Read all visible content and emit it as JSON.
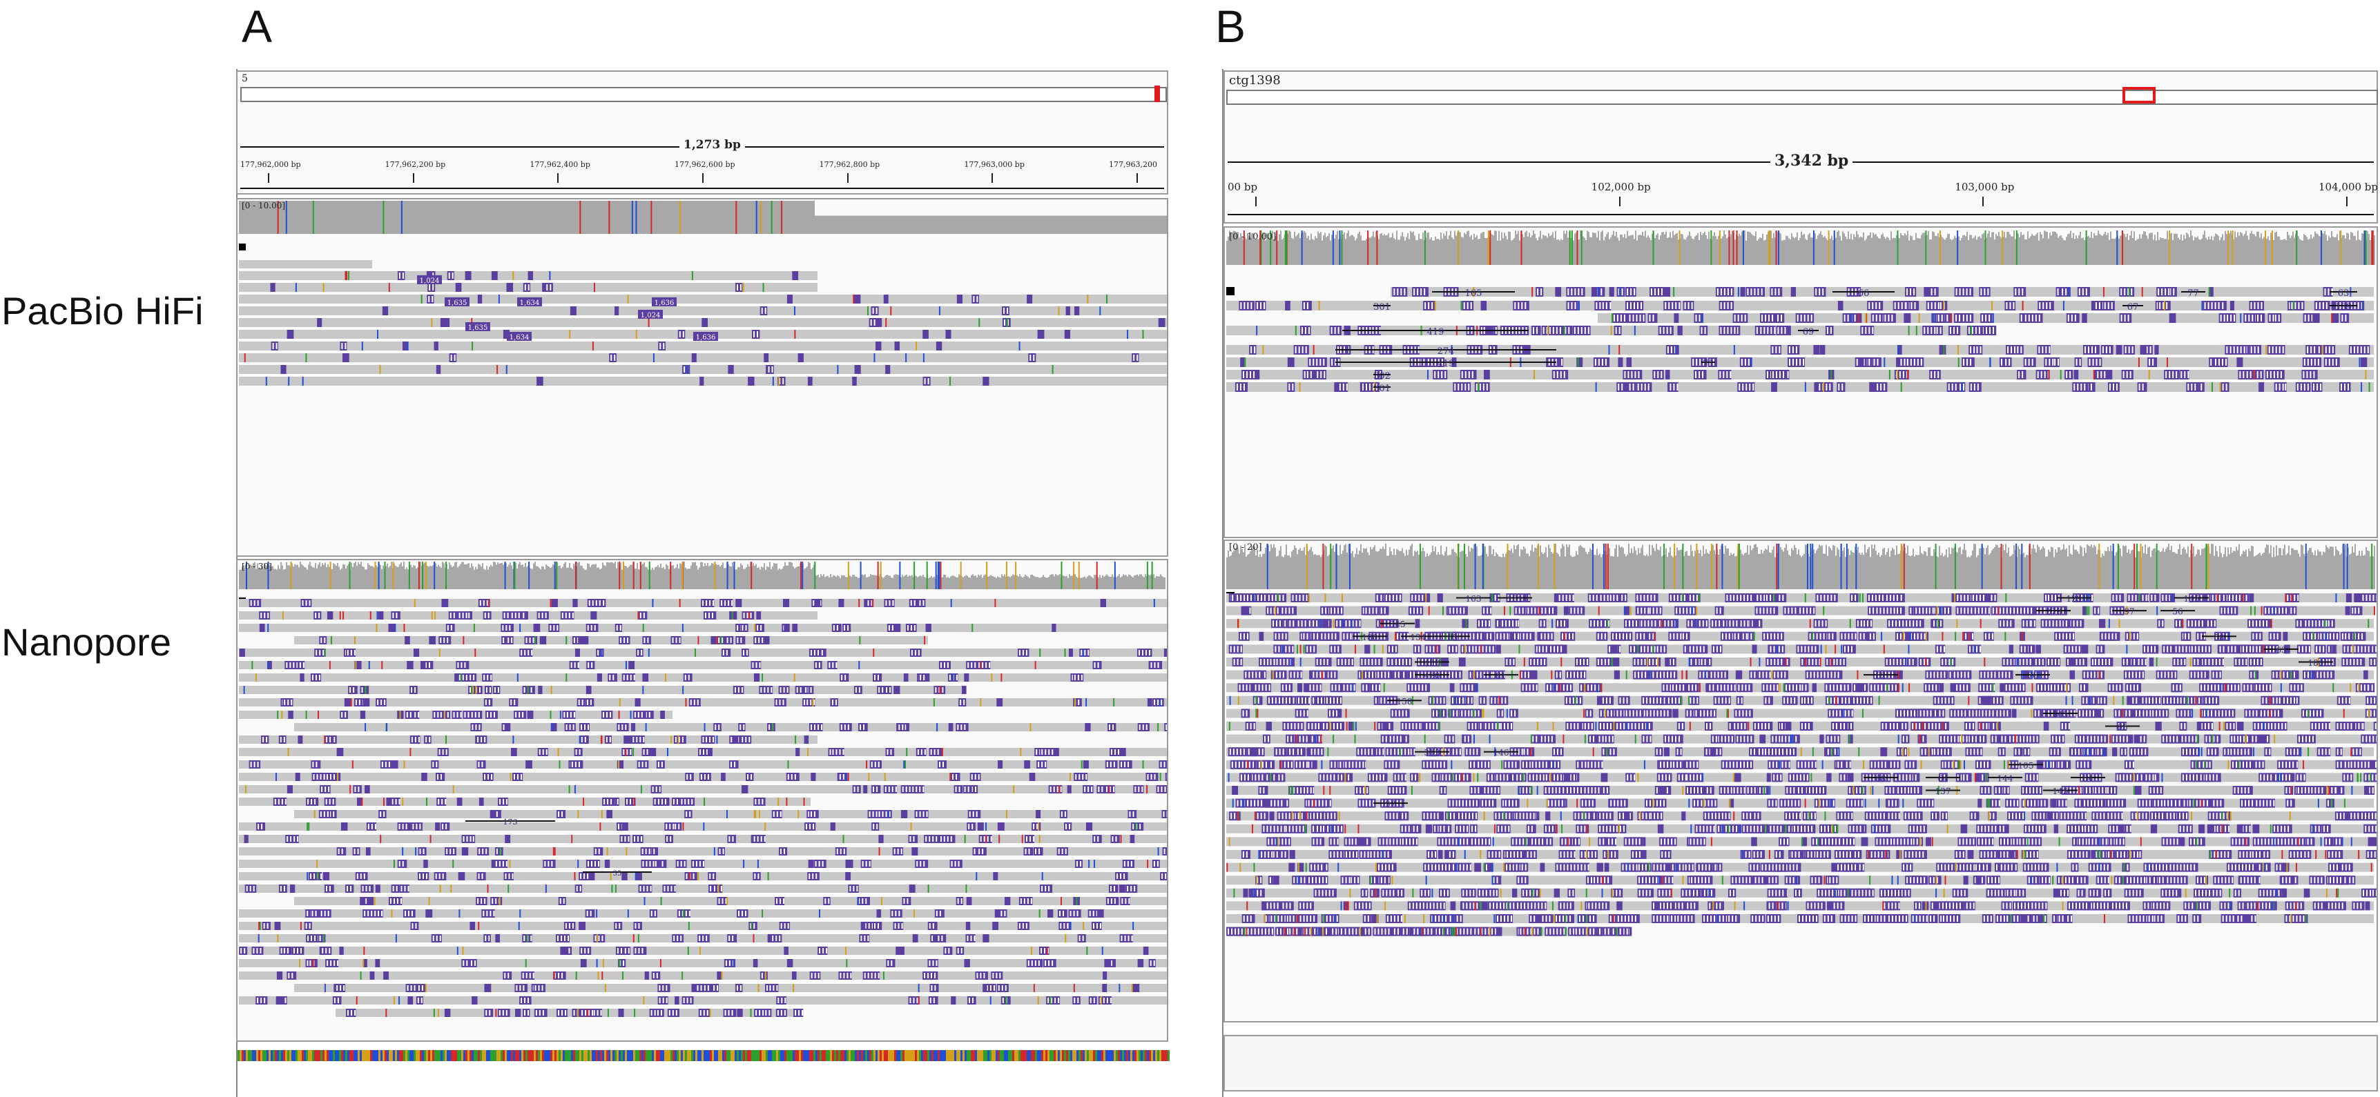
{
  "panels": {
    "A": {
      "letter": "A",
      "chrom": "5",
      "length_label": "1,273 bp",
      "ticks": [
        "177,962,000 bp",
        "177,962,200 bp",
        "177,962,400 bp",
        "177,962,600 bp",
        "177,962,800 bp",
        "177,963,000 bp",
        "177,963,200"
      ],
      "hifi_range": "[0 - 10.00]",
      "nano_range": "[0 - 30]",
      "hifi_insertions": [
        "1,024",
        "1,635",
        "1,634",
        "1,636"
      ],
      "nano_insertions": [
        "173",
        "35"
      ]
    },
    "B": {
      "letter": "B",
      "chrom": "ctg1398",
      "length_label": "3,342 bp",
      "ticks": [
        "00 bp",
        "102,000 bp",
        "103,000 bp",
        "104,000 bp"
      ],
      "hifi_range": "[0 - 10.00]",
      "nano_range": "[0 - 20]",
      "hifi_insertions": [
        "165",
        "66",
        "77",
        "63",
        "301",
        "67",
        "139",
        "419",
        "69",
        "274",
        "419",
        "71",
        "302",
        "301"
      ],
      "nano_insertions": [
        "163",
        "131",
        "129",
        "145",
        "279",
        "97",
        "56",
        "345",
        "180",
        "134",
        "65",
        "58",
        "63",
        "450",
        "180",
        "420",
        "81",
        "62",
        "76",
        "158",
        "145",
        "65",
        "313",
        "146",
        "105",
        "68",
        "64",
        "144",
        "64",
        "137",
        "145",
        "97"
      ]
    }
  },
  "row_labels": {
    "hifi": "PacBio HiFi",
    "nanopore": "Nanopore"
  },
  "colors": {
    "coverage": "#a8a8a8",
    "read": "#c8c8c8",
    "insertion": "#5a3fa0",
    "mismatch_a": "#2ca02c",
    "mismatch_c": "#1f4fd6",
    "mismatch_g": "#d4a017",
    "mismatch_t": "#d62728",
    "locator": "#e31a1c"
  }
}
